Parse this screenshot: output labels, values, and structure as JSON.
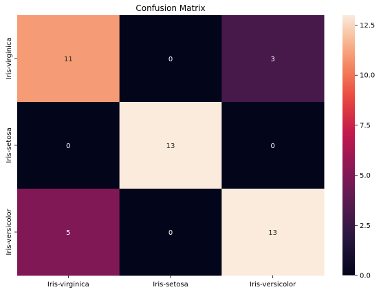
{
  "chart_data": {
    "type": "heatmap",
    "title": "Confusion Matrix",
    "xlabel": "",
    "ylabel": "",
    "x_categories": [
      "Iris-virginica",
      "Iris-setosa",
      "Iris-versicolor"
    ],
    "y_categories": [
      "Iris-virginica",
      "Iris-setosa",
      "Iris-versicolor"
    ],
    "values": [
      [
        11,
        0,
        3
      ],
      [
        0,
        13,
        0
      ],
      [
        5,
        0,
        13
      ]
    ],
    "vmin": 0,
    "vmax": 13,
    "colormap": "rocket",
    "colorbar": {
      "ticks": [
        0.0,
        2.5,
        5.0,
        7.5,
        10.0,
        12.5
      ],
      "tick_labels": [
        "0.0",
        "2.5",
        "5.0",
        "7.5",
        "10.0",
        "12.5"
      ]
    },
    "annotations": true
  }
}
